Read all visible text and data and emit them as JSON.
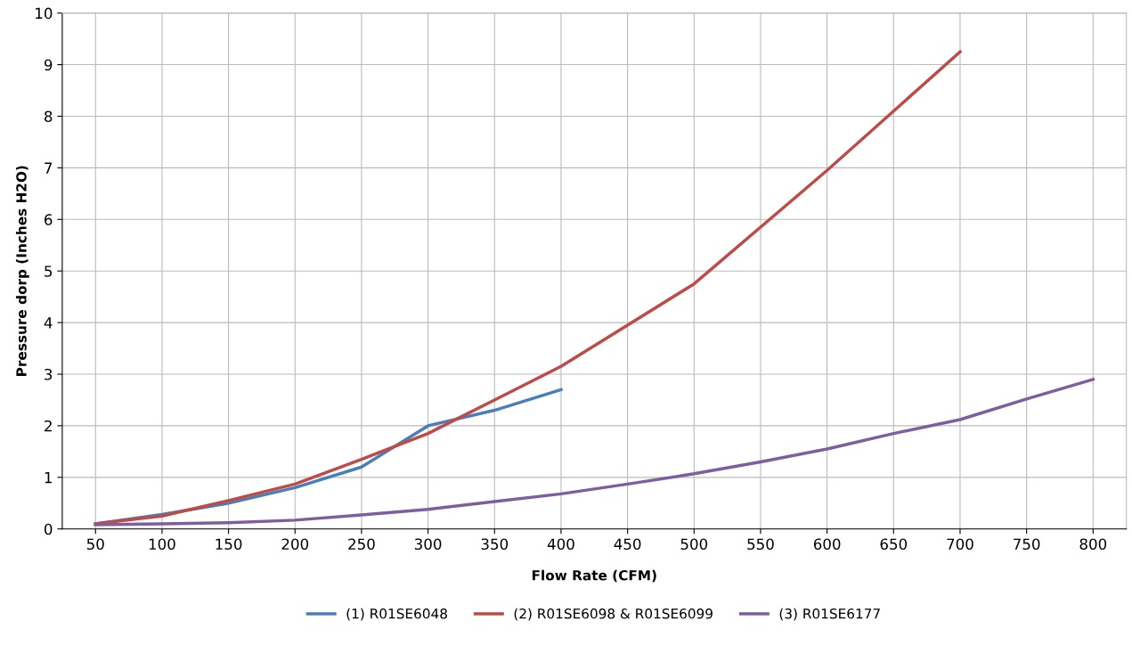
{
  "chart_data": {
    "type": "line",
    "xlabel": "Flow Rate (CFM)",
    "ylabel": "Pressure dorp (Inches H2O)",
    "xlim": [
      25,
      825
    ],
    "xticks": [
      50,
      100,
      150,
      200,
      250,
      300,
      350,
      400,
      450,
      500,
      550,
      600,
      650,
      700,
      750,
      800
    ],
    "ylim": [
      0,
      10
    ],
    "yticks": [
      0,
      1,
      2,
      3,
      4,
      5,
      6,
      7,
      8,
      9,
      10
    ],
    "grid": true,
    "legend": "bottom",
    "line_style": "solid",
    "series": [
      {
        "name": "(1) R01SE6048",
        "color": "#4a7ebb",
        "x": [
          50,
          100,
          150,
          200,
          250,
          300,
          350,
          400
        ],
        "values": [
          0.1,
          0.28,
          0.5,
          0.8,
          1.2,
          2.0,
          2.3,
          2.7
        ]
      },
      {
        "name": "(2) R01SE6098 & R01SE6099",
        "color": "#be4b48",
        "x": [
          50,
          100,
          150,
          200,
          250,
          300,
          350,
          400,
          450,
          500,
          550,
          600,
          650,
          700
        ],
        "values": [
          0.1,
          0.25,
          0.55,
          0.87,
          1.35,
          1.85,
          2.5,
          3.15,
          3.95,
          4.75,
          5.85,
          6.95,
          8.1,
          9.25
        ]
      },
      {
        "name": "(3) R01SE6177",
        "color": "#7d5fa0",
        "x": [
          50,
          100,
          150,
          200,
          250,
          300,
          350,
          400,
          450,
          500,
          550,
          600,
          650,
          700,
          750,
          800
        ],
        "values": [
          0.08,
          0.1,
          0.12,
          0.17,
          0.27,
          0.38,
          0.53,
          0.68,
          0.87,
          1.07,
          1.3,
          1.55,
          1.85,
          2.12,
          2.52,
          2.9
        ]
      }
    ]
  }
}
